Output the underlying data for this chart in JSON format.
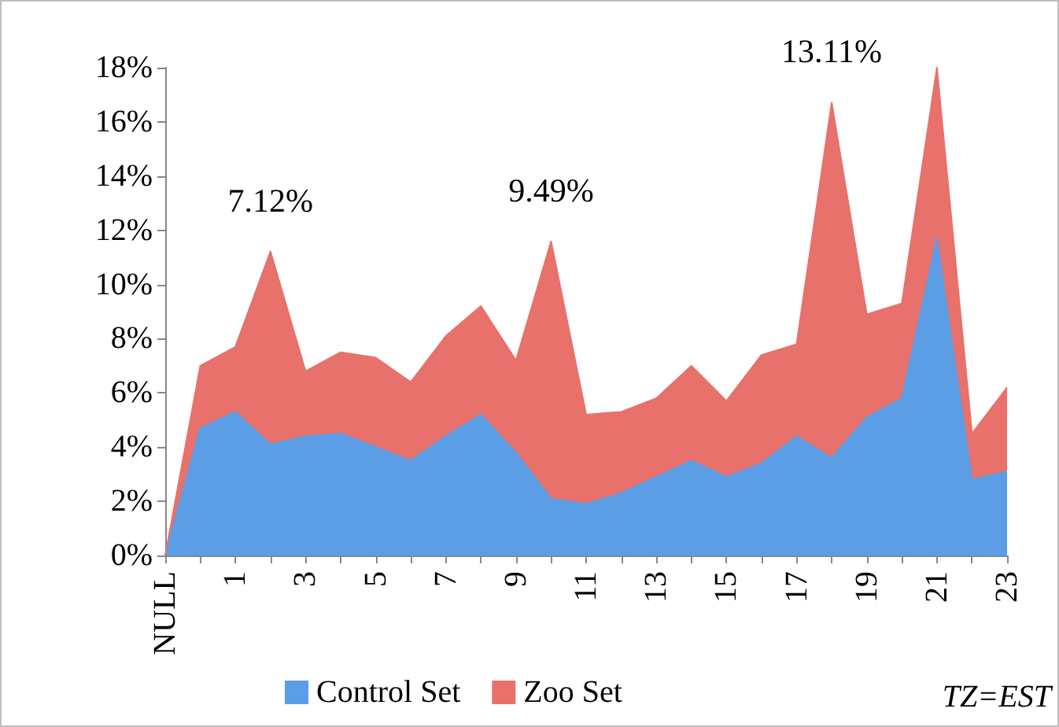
{
  "chart_data": {
    "type": "area",
    "stacked": true,
    "categories": [
      "NULL",
      null,
      "1",
      null,
      "3",
      null,
      "5",
      null,
      "7",
      null,
      "9",
      null,
      "11",
      null,
      "13",
      null,
      "15",
      null,
      "17",
      null,
      "19",
      null,
      "21",
      null,
      "23"
    ],
    "series": [
      {
        "name": "Control Set",
        "color": "#5b9ee6",
        "values": [
          0,
          4.7,
          5.3,
          4.1,
          4.4,
          4.5,
          4.0,
          3.5,
          4.4,
          5.2,
          3.8,
          2.1,
          1.9,
          2.3,
          2.9,
          3.5,
          2.9,
          3.4,
          4.4,
          3.6,
          5.1,
          5.8,
          11.7,
          2.8,
          3.1
        ]
      },
      {
        "name": "Zoo Set",
        "color": "#e8716b",
        "values": [
          0,
          2.3,
          2.4,
          7.12,
          2.4,
          3.0,
          3.3,
          2.9,
          3.7,
          4.0,
          3.4,
          9.49,
          3.3,
          3.0,
          2.9,
          3.5,
          2.8,
          4.0,
          3.4,
          13.11,
          3.8,
          3.5,
          6.3,
          1.7,
          3.1
        ],
        "value_labels": [
          null,
          null,
          null,
          "7.12%",
          null,
          null,
          null,
          null,
          null,
          null,
          null,
          "9.49%",
          null,
          null,
          null,
          null,
          null,
          null,
          null,
          "13.11%",
          null,
          null,
          null,
          null,
          null
        ]
      }
    ],
    "ylim": [
      0,
      18
    ],
    "yticks": [
      {
        "value": 0,
        "label": "0%"
      },
      {
        "value": 2,
        "label": "2%"
      },
      {
        "value": 4,
        "label": "4%"
      },
      {
        "value": 6,
        "label": "6%"
      },
      {
        "value": 8,
        "label": "8%"
      },
      {
        "value": 10,
        "label": "10%"
      },
      {
        "value": 12,
        "label": "12%"
      },
      {
        "value": 14,
        "label": "14%"
      },
      {
        "value": 16,
        "label": "16%"
      },
      {
        "value": 18,
        "label": "18%"
      }
    ],
    "grid": false,
    "legend": "bottom",
    "marker": "none",
    "annotations": [
      "TZ=EST"
    ]
  }
}
